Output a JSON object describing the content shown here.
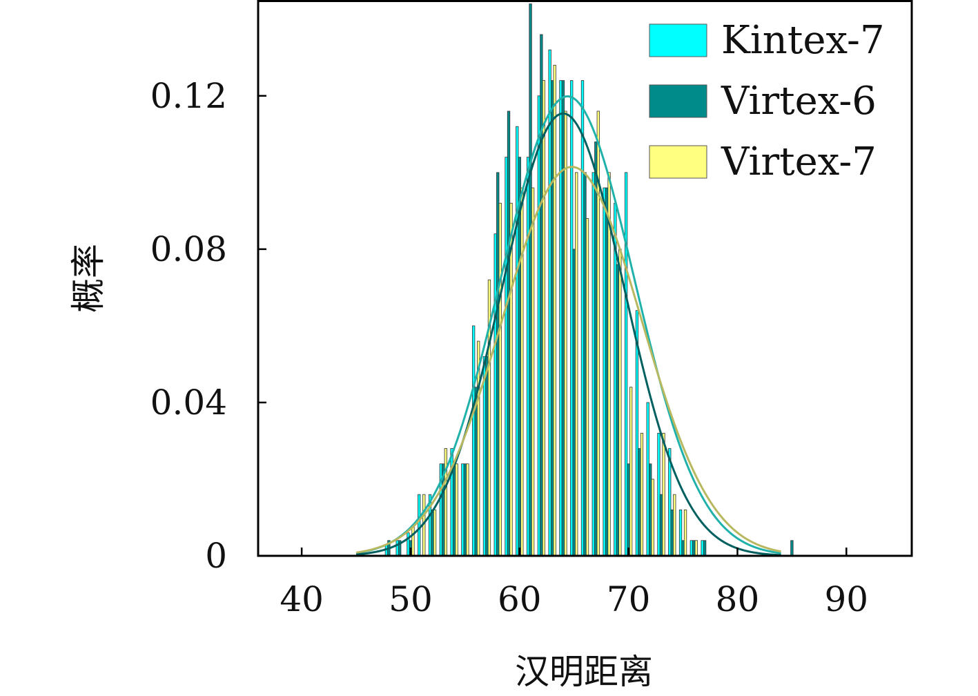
{
  "chart_data": {
    "type": "bar",
    "xlabel": "汉明距离",
    "ylabel": "概率",
    "xlim": [
      36,
      96
    ],
    "ylim": [
      0,
      0.145
    ],
    "xticks": [
      40,
      50,
      60,
      70,
      80,
      90
    ],
    "xtick_labels": [
      "40",
      "50",
      "60",
      "70",
      "80",
      "90"
    ],
    "yticks": [
      0,
      0.04,
      0.08,
      0.12
    ],
    "ytick_labels": [
      "0",
      "0.04",
      "0.08",
      "0.12"
    ],
    "grid": false,
    "legend_position": "top-right",
    "x": [
      48,
      49,
      50,
      51,
      52,
      53,
      54,
      55,
      56,
      57,
      58,
      59,
      60,
      61,
      62,
      63,
      64,
      65,
      66,
      67,
      68,
      69,
      70,
      71,
      72,
      73,
      74,
      75,
      76,
      77,
      78,
      79,
      80,
      81,
      82,
      83,
      84,
      85
    ],
    "series": [
      {
        "name": "Kintex-7",
        "color": "#00ffff",
        "values": [
          0.003,
          0.004,
          0.006,
          0.016,
          0.016,
          0.024,
          0.028,
          0.024,
          0.06,
          0.052,
          0.084,
          0.104,
          0.112,
          0.104,
          0.12,
          0.132,
          0.124,
          0.124,
          0.124,
          0.1,
          0.096,
          0.092,
          0.1,
          0.064,
          0.04,
          0.032,
          0.028,
          0.012,
          0.004,
          0.004,
          0.0,
          0.0,
          0.0,
          0.0,
          0.0,
          0.0,
          0.0,
          0.0
        ],
        "fit_mean": 64.4,
        "fit_sd": 6.1
      },
      {
        "name": "Virtex-6",
        "color": "#008b8b",
        "values": [
          0.004,
          0.004,
          0.004,
          0.0,
          0.012,
          0.024,
          0.024,
          0.024,
          0.044,
          0.052,
          0.1,
          0.116,
          0.104,
          0.144,
          0.136,
          0.124,
          0.124,
          0.08,
          0.1,
          0.108,
          0.096,
          0.076,
          0.024,
          0.028,
          0.024,
          0.016,
          0.012,
          0.004,
          0.004,
          0.004,
          0.0,
          0.0,
          0.0,
          0.0,
          0.0,
          0.0,
          0.0,
          0.004
        ],
        "fit_mean": 64.0,
        "fit_sd": 5.6
      },
      {
        "name": "Virtex-7",
        "color": "#ffff80",
        "values": [
          0.0,
          0.0,
          0.008,
          0.016,
          0.012,
          0.028,
          0.024,
          0.024,
          0.056,
          0.072,
          0.092,
          0.092,
          0.096,
          0.096,
          0.124,
          0.128,
          0.116,
          0.1,
          0.088,
          0.116,
          0.1,
          0.08,
          0.044,
          0.032,
          0.02,
          0.032,
          0.016,
          0.012,
          0.004,
          0.0,
          0.0,
          0.0,
          0.0,
          0.0,
          0.0,
          0.0,
          0.0,
          0.0
        ],
        "fit_mean": 64.8,
        "fit_sd": 6.4
      }
    ]
  }
}
